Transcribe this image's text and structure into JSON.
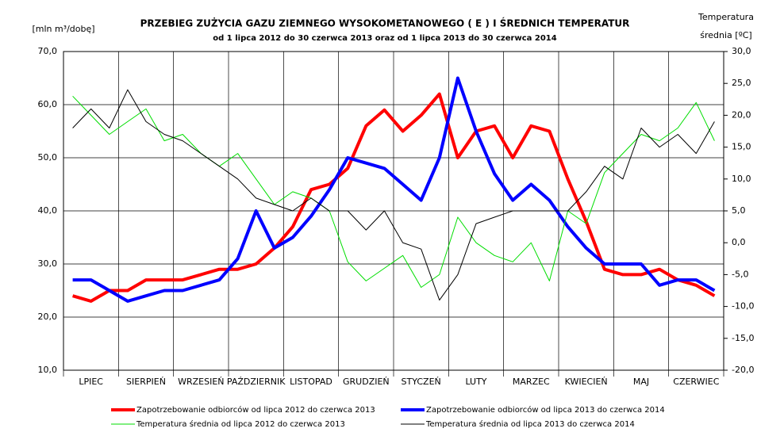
{
  "chart_data": {
    "type": "line",
    "title": "PRZEBIEG ZUŻYCIA GAZU ZIEMNEGO WYSOKOMETANOWEGO ( E ) I ŚREDNICH TEMPERATUR",
    "subtitle": "od 1 lipca 2012 do 30 czerwca 2013 oraz od 1 lipca 2013  do 30 czerwca 2014",
    "ylabel": "[mln m³/dobę]",
    "y2label": [
      "Temperatura",
      "średnia [ºC]"
    ],
    "categories": [
      null,
      "LPIEC",
      null,
      null,
      "SIERPIEŃ",
      null,
      null,
      "WRZESIEŃ",
      null,
      null,
      "PAŹDZIERNIK",
      null,
      null,
      "LISTOPAD",
      null,
      null,
      "GRUDZIEŃ",
      null,
      null,
      "STYCZEŃ",
      null,
      null,
      "LUTY",
      null,
      null,
      "MARZEC",
      null,
      null,
      "KWIECIEŃ",
      null,
      null,
      "MAJ",
      null,
      null,
      "CZERWIEC",
      null
    ],
    "ylim": [
      10,
      70
    ],
    "yticks": [
      {
        "value": 10,
        "label": "10,0"
      },
      {
        "value": 20,
        "label": "20,0"
      },
      {
        "value": 30,
        "label": "30,0"
      },
      {
        "value": 40,
        "label": "40,0"
      },
      {
        "value": 50,
        "label": "50,0"
      },
      {
        "value": 60,
        "label": "60,0"
      },
      {
        "value": 70,
        "label": "70,0"
      }
    ],
    "y2lim": [
      -20,
      30
    ],
    "y2ticks": [
      {
        "value": -20,
        "label": "-20,0"
      },
      {
        "value": -15,
        "label": "-15,0"
      },
      {
        "value": -10,
        "label": "-10,0"
      },
      {
        "value": -5,
        "label": "-5,0"
      },
      {
        "value": 0,
        "label": "0,0"
      },
      {
        "value": 5,
        "label": "5,0"
      },
      {
        "value": 10,
        "label": "10,0"
      },
      {
        "value": 15,
        "label": "15,0"
      },
      {
        "value": 20,
        "label": "20,0"
      },
      {
        "value": 25,
        "label": "25,0"
      },
      {
        "value": 30,
        "label": "30,0"
      }
    ],
    "grid": true,
    "series": [
      {
        "name": "Zapotrzebowanie odbiorców od lipca 2012 do czerwca 2013",
        "color": "#ff0000",
        "values": [
          24,
          23,
          25,
          25,
          27,
          27,
          27,
          28,
          29,
          29,
          30,
          33,
          37,
          44,
          45,
          48,
          56,
          59,
          55,
          58,
          62,
          50,
          55,
          56,
          50,
          56,
          55,
          46,
          38,
          29,
          28,
          28,
          29,
          27,
          26,
          24
        ]
      },
      {
        "name": "Zapotrzebowanie odbiorców  od lipca 2013 do czerwca 2014",
        "color": "#0000ff",
        "values": [
          27,
          27,
          25,
          23,
          24,
          25,
          25,
          26,
          27,
          31,
          40,
          33,
          35,
          39,
          44,
          50,
          49,
          48,
          45,
          42,
          50,
          65,
          55,
          47,
          42,
          45,
          42,
          37,
          33,
          30,
          30,
          30,
          26,
          27,
          27,
          25
        ]
      },
      {
        "name": "Temperatura średnia od lipca 2012 do czerwca 2013",
        "color": "#00dd00",
        "axis": "y2",
        "values": [
          23,
          20,
          17,
          19,
          21,
          16,
          17,
          14,
          12,
          14,
          10,
          6,
          8,
          7,
          5,
          -3,
          -6,
          -4,
          -2,
          -7,
          -5,
          4,
          0,
          -2,
          -3,
          0,
          -6,
          5,
          3,
          11,
          14,
          17,
          16,
          18,
          22,
          16
        ]
      },
      {
        "name": "Temperatura średnia od  lipca 2013 do czerwca 2014",
        "color": "#000000",
        "axis": "y2",
        "values": [
          18,
          21,
          18,
          24,
          19,
          17,
          16,
          14,
          12,
          10,
          7,
          6,
          5,
          7,
          5,
          5,
          2,
          5,
          0,
          -1,
          -9,
          -5,
          3,
          4,
          5,
          5,
          5,
          5,
          8,
          12,
          10,
          18,
          15,
          17,
          14,
          19
        ]
      }
    ]
  }
}
